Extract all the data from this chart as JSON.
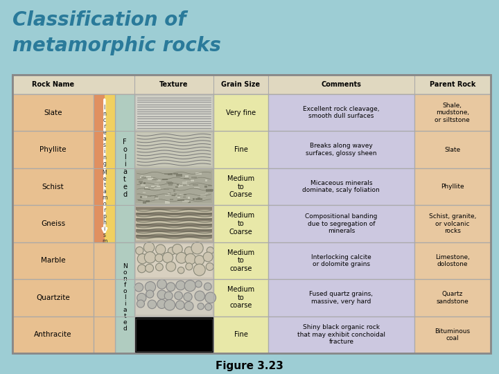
{
  "title_line1": "Classification of",
  "title_line2": "metamorphic rocks",
  "figure_caption": "Figure 3.23",
  "bg_color": "#9dcdd4",
  "table_bg": "#f0ebe0",
  "header_bg": "#e0d8c0",
  "rock_name_bg": "#e8c090",
  "grain_size_bg": "#e8e8a8",
  "comments_bg": "#ccc8e0",
  "parent_rock_bg": "#e8c8a0",
  "foliated_bg": "#b0ccc0",
  "nonfoliated_bg": "#b0ccc0",
  "incr_left_color": "#e8a060",
  "incr_right_color": "#f0d870",
  "texture_slate_bg": "#c8c8c0",
  "texture_phyllite_bg": "#c8c8b8",
  "texture_schist_bg": "#b8b8a8",
  "texture_gneiss_bg": "#c0b8a0",
  "texture_marble_bg": "#d8d0c0",
  "texture_quartzite_bg": "#c8c8c0",
  "texture_anthracite_bg": "#000000",
  "rows": [
    {
      "rock_name": "Slate",
      "grain_size": "Very fine",
      "comments": "Excellent rock cleavage,\nsmooth dull surfaces",
      "parent_rock": "Shale,\nmudstone,\nor siltstone",
      "texture_type": "slate"
    },
    {
      "rock_name": "Phyllite",
      "grain_size": "Fine",
      "comments": "Breaks along wavey\nsurfaces, glossy sheen",
      "parent_rock": "Slate",
      "texture_type": "phyllite"
    },
    {
      "rock_name": "Schist",
      "grain_size": "Medium\nto\nCoarse",
      "comments": "Micaceous minerals\ndominate, scaly foliation",
      "parent_rock": "Phyllite",
      "texture_type": "schist"
    },
    {
      "rock_name": "Gneiss",
      "grain_size": "Medium\nto\nCoarse",
      "comments": "Compositional banding\ndue to segregation of\nminerals",
      "parent_rock": "Schist, granite,\nor volcanic\nrocks",
      "texture_type": "gneiss"
    },
    {
      "rock_name": "Marble",
      "grain_size": "Medium\nto\ncoarse",
      "comments": "Interlocking calcite\nor dolomite grains",
      "parent_rock": "Limestone,\ndolostone",
      "texture_type": "marble"
    },
    {
      "rock_name": "Quartzite",
      "grain_size": "Medium\nto\ncoarse",
      "comments": "Fused quartz grains,\nmassive, very hard",
      "parent_rock": "Quartz\nsandstone",
      "texture_type": "quartzite"
    },
    {
      "rock_name": "Anthracite",
      "grain_size": "Fine",
      "comments": "Shiny black organic rock\nthat may exhibit conchoidal\nfracture",
      "parent_rock": "Bituminous\ncoal",
      "texture_type": "anthracite"
    }
  ]
}
